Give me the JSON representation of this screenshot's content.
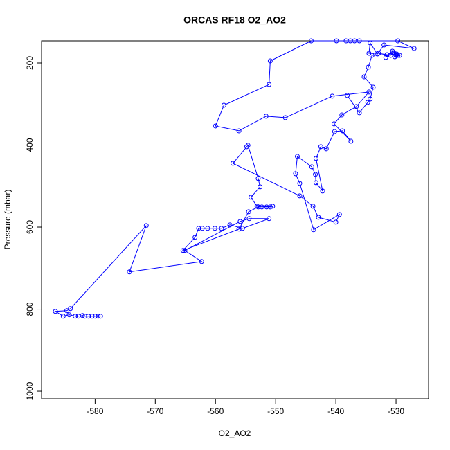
{
  "chart_data": {
    "type": "line",
    "title": "ORCAS RF18 O2_AO2",
    "x_label": "O2_AO2",
    "y_label": "Pressure (mbar)",
    "color": "#0000ff",
    "markers": true,
    "x": [
      -579.1,
      -579.5,
      -580,
      -580.5,
      -581.1,
      -581.7,
      -582.1,
      -582.8,
      -583.3,
      -584.3,
      -585.3,
      -586.6,
      -584.7,
      -584.1,
      -571.5,
      -574.3,
      -562.3,
      -565.1,
      -555.9,
      -554.4,
      -551.1,
      -555.5,
      -557.6,
      -559,
      -560.1,
      -561.3,
      -562.2,
      -562.8,
      -563.4,
      -565.4,
      -556.1,
      -554.5,
      -552.9,
      -550.5,
      -550.9,
      -551.5,
      -552.3,
      -553.1,
      -554.1,
      -552.6,
      -552.9,
      -554.6,
      -554.8,
      -557.1,
      -546,
      -543.8,
      -542.9,
      -540,
      -539.4,
      -543.7,
      -546,
      -546.7,
      -546.4,
      -544,
      -543.4,
      -543.3,
      -542.2,
      -543.3,
      -542.5,
      -541.6,
      -540.2,
      -538.9,
      -537.5,
      -540.3,
      -539,
      -536.6,
      -534.5,
      -540.6,
      -548.4,
      -551.6,
      -556.1,
      -560,
      -558.6,
      -551.1,
      -550.9,
      -544.1,
      -539.9,
      -538.3,
      -537.6,
      -536.9,
      -536.1,
      -529.7,
      -527,
      -532,
      -533.1,
      -534.3,
      -534.5,
      -532.9,
      -530.9,
      -530.6,
      -529.9,
      -529.7,
      -530.2,
      -529.4,
      -530.3,
      -530,
      -530.6,
      -531.7,
      -531.5,
      -534,
      -534.6,
      -535.3,
      -533.8,
      -534.3,
      -534.7,
      -536.1,
      -538.1
    ],
    "values": [
      817.2,
      817.2,
      817.2,
      817.2,
      817.2,
      817.2,
      815.5,
      817.2,
      817.2,
      813.8,
      817.2,
      805.4,
      803.7,
      798.7,
      596.3,
      709.3,
      684,
      657,
      586.2,
      579.4,
      579.4,
      603,
      594.6,
      603,
      603,
      603,
      603,
      603,
      625,
      657,
      604.7,
      562.6,
      550.8,
      549.1,
      550.8,
      550.8,
      550.8,
      549.1,
      527.2,
      501.9,
      481.6,
      400.7,
      404,
      444.5,
      523.8,
      549.1,
      576.1,
      587.9,
      569.3,
      606.4,
      493.4,
      469.8,
      427.7,
      453,
      471.5,
      491.7,
      512,
      432.7,
      404,
      409.1,
      367,
      365.3,
      390.6,
      348.4,
      326.5,
      306.2,
      270.7,
      280.9,
      333.2,
      329.8,
      365.3,
      353.5,
      302.9,
      252.3,
      194.9,
      146,
      146,
      146,
      146,
      146,
      146,
      146,
      164.6,
      156.2,
      178.1,
      151.1,
      176.4,
      176.4,
      181.5,
      174.7,
      178.1,
      181.5,
      184.8,
      181.5,
      176.4,
      181.5,
      171.3,
      186.5,
      179.8,
      181.5,
      210.1,
      233.7,
      259,
      287.7,
      296.1,
      321.4,
      279.2
    ],
    "xlim": [
      -588.9,
      -524.6
    ],
    "ylim": [
      1018.5,
      146
    ],
    "xticks": [
      -580,
      -570,
      -560,
      -550,
      -540,
      -530
    ],
    "yticks": [
      200,
      400,
      600,
      800,
      1000
    ]
  }
}
